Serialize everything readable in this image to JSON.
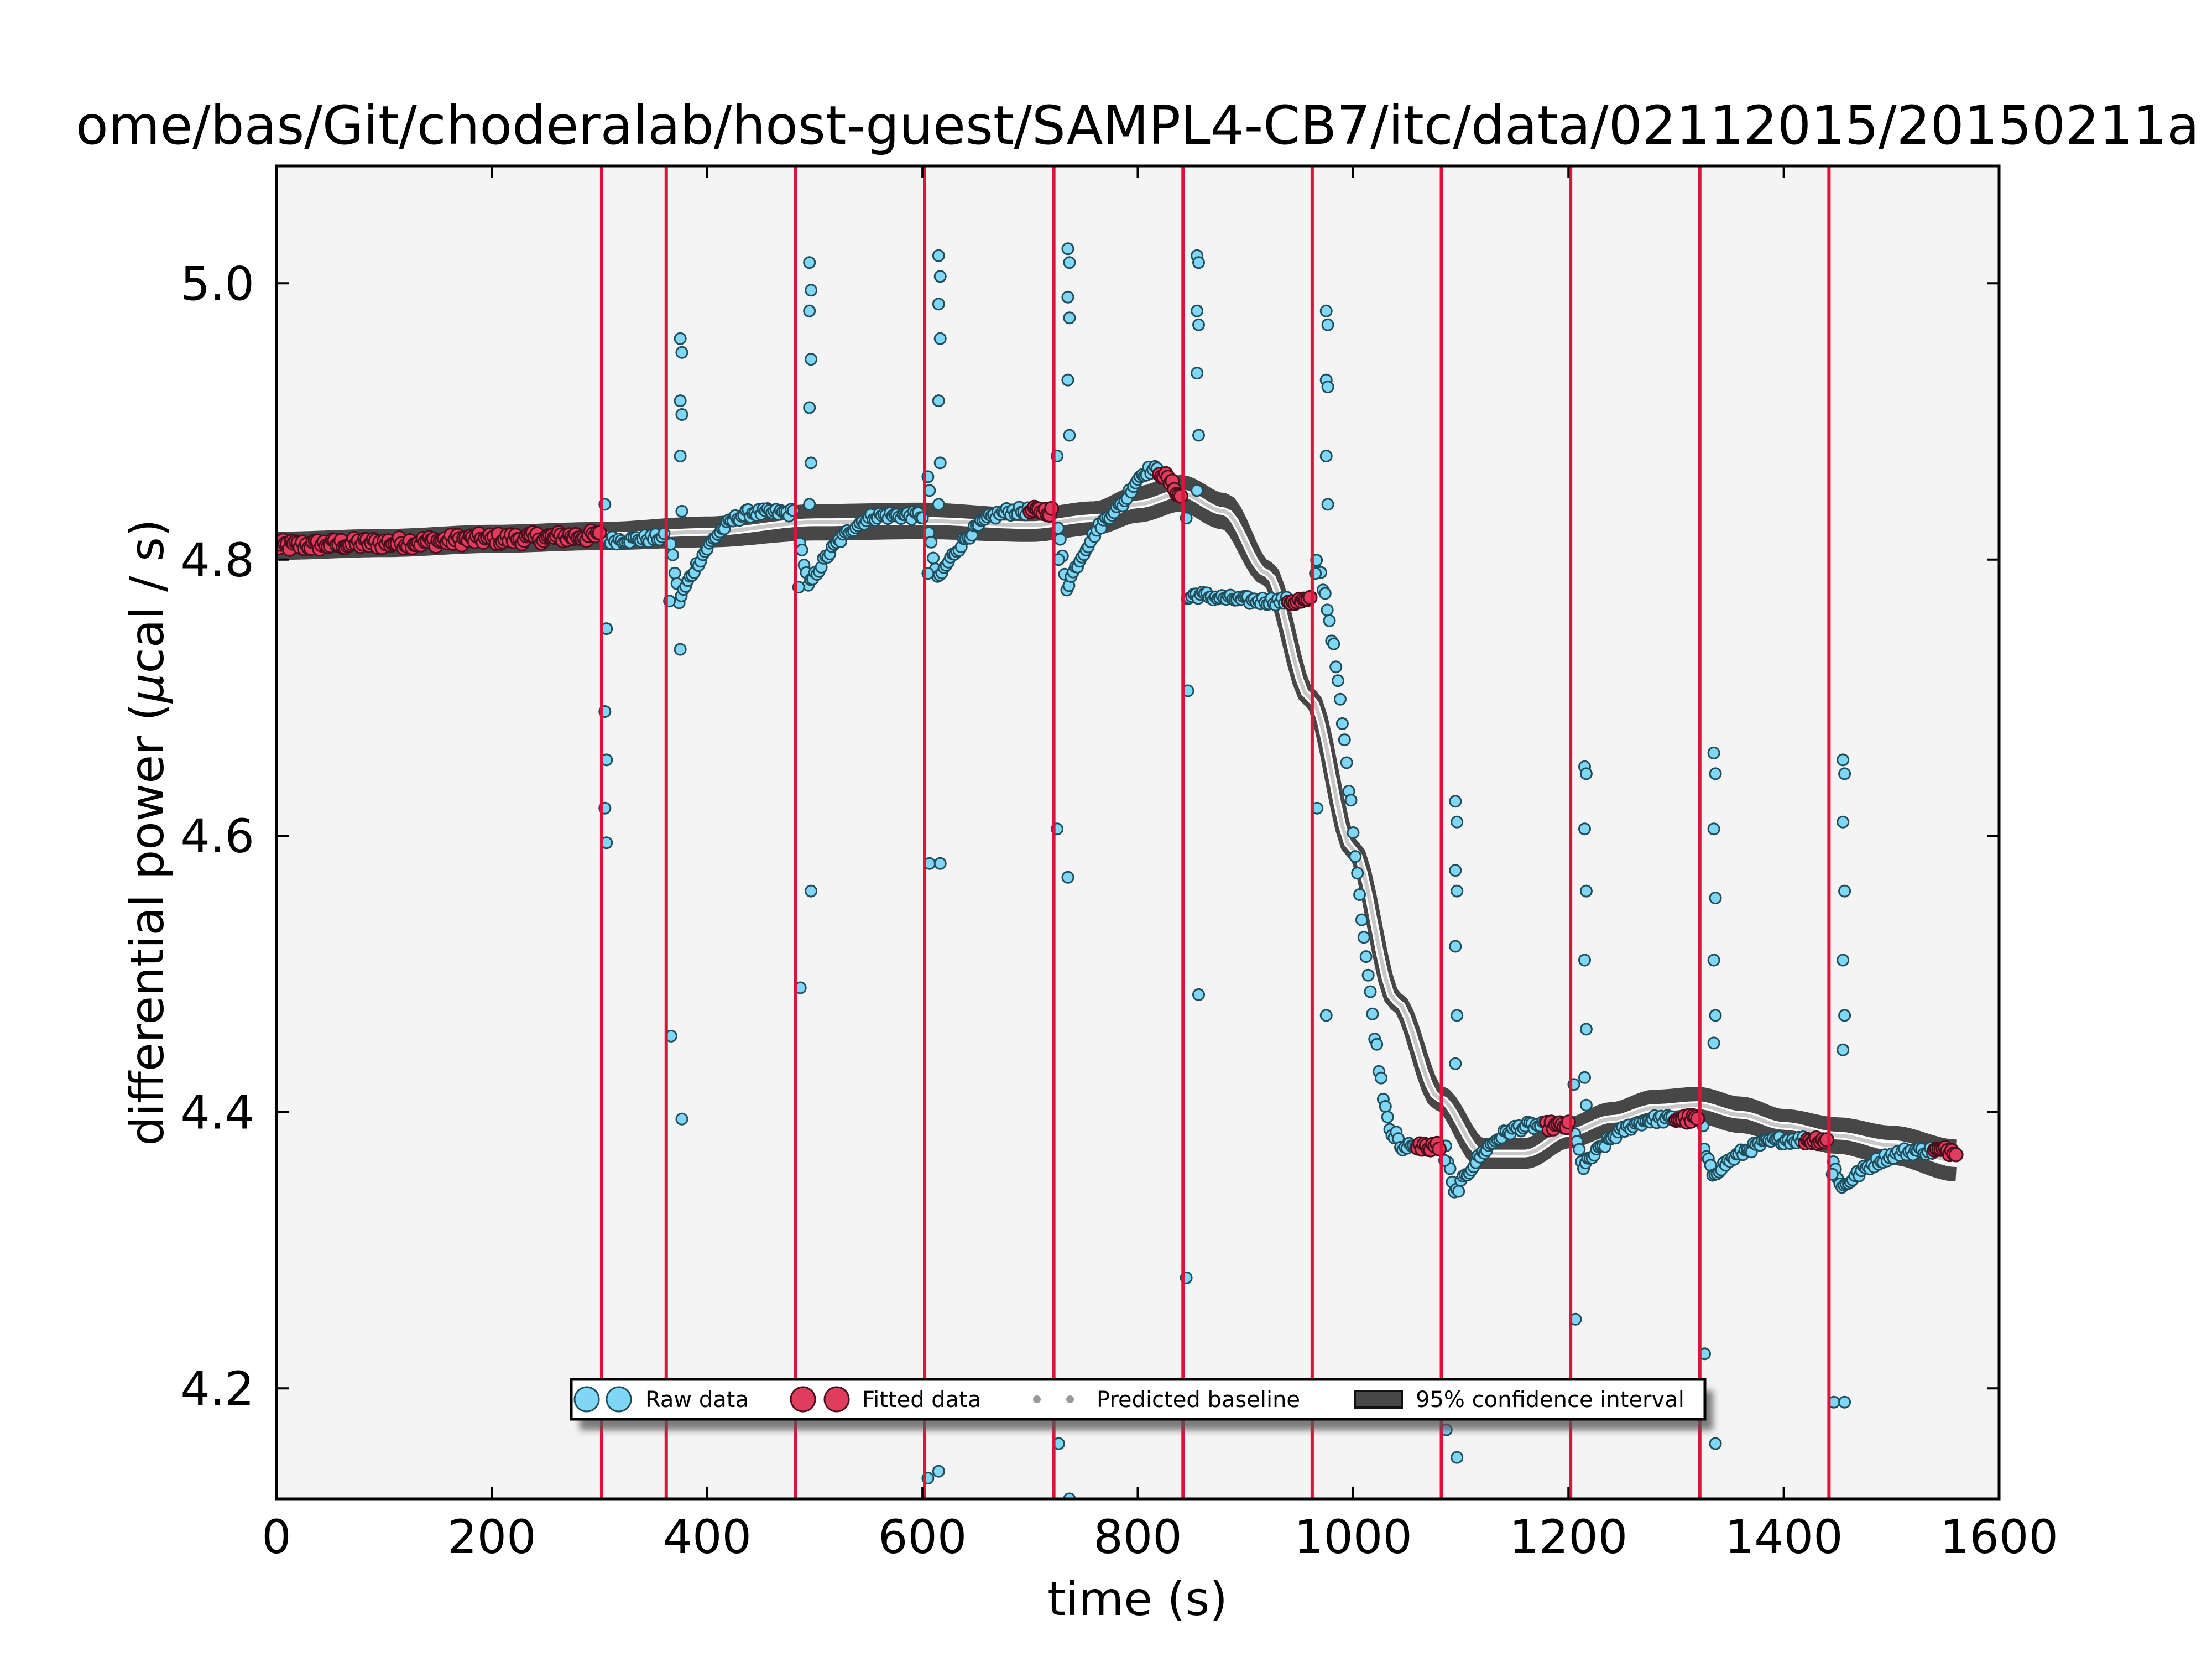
{
  "chart_data": {
    "type": "scatter",
    "title": "ome/bas/Git/choderalab/host-guest/SAMPL4-CB7/itc/data/02112015/20150211a",
    "xlabel": "time (s)",
    "ylabel_prefix": "differential power (",
    "ylabel_mu": "μ",
    "ylabel_suffix": "cal / s)",
    "xlim": [
      0,
      1600
    ],
    "ylim": [
      4.12,
      5.085
    ],
    "x_ticks": [
      0,
      200,
      400,
      600,
      800,
      1000,
      1200,
      1400,
      1600
    ],
    "x_tick_labels": [
      "0",
      "200",
      "400",
      "600",
      "800",
      "1000",
      "1200",
      "1400",
      "1600"
    ],
    "y_ticks": [
      4.2,
      4.4,
      4.6,
      4.8,
      5.0
    ],
    "y_tick_labels": [
      "4.2",
      "4.4",
      "4.6",
      "4.8",
      "5.0"
    ],
    "grid": false,
    "legend_position": "bottom-center",
    "colors": {
      "plot_background": "#f4f4f4",
      "raw_fill": "#7fd6f5",
      "fitted_fill": "#e03c5e",
      "injection_line": "#dc143c",
      "baseline": "#c8c8c8",
      "confidence_band": "#474747"
    },
    "legend": [
      {
        "label": "Raw data",
        "marker": "raw"
      },
      {
        "label": "Fitted data",
        "marker": "fitted"
      },
      {
        "label": "Predicted baseline",
        "marker": "baseline"
      },
      {
        "label": "95% confidence interval",
        "marker": "band"
      }
    ],
    "injection_times": [
      302,
      362,
      482,
      602,
      722,
      842,
      962,
      1082,
      1202,
      1322,
      1442
    ],
    "baseline": {
      "x": [
        0,
        100,
        200,
        300,
        400,
        500,
        600,
        700,
        760,
        800,
        840,
        880,
        920,
        960,
        1000,
        1040,
        1080,
        1120,
        1160,
        1200,
        1240,
        1280,
        1320,
        1360,
        1400,
        1450,
        1500,
        1560
      ],
      "y": [
        4.81,
        4.812,
        4.815,
        4.817,
        4.82,
        4.827,
        4.828,
        4.825,
        4.83,
        4.84,
        4.848,
        4.835,
        4.79,
        4.7,
        4.59,
        4.48,
        4.41,
        4.37,
        4.37,
        4.385,
        4.395,
        4.403,
        4.405,
        4.398,
        4.39,
        4.383,
        4.376,
        4.365
      ],
      "band_halfwidth": [
        0.005,
        0.005,
        0.005,
        0.005,
        0.006,
        0.008,
        0.008,
        0.007,
        0.007,
        0.008,
        0.008,
        0.008,
        0.004,
        0.002,
        0.002,
        0.002,
        0.004,
        0.006,
        0.006,
        0.006,
        0.007,
        0.008,
        0.008,
        0.008,
        0.007,
        0.008,
        0.009,
        0.01
      ]
    },
    "raw_series": [
      {
        "name": "Raw data",
        "x_range": [
          0,
          302
        ],
        "trend": "baseline",
        "noise": 0.004
      },
      {
        "name": "Raw data",
        "x_range": [
          306,
          360
        ],
        "trend": "peak",
        "t0": 302
      },
      {
        "name": "Raw data",
        "x_range": [
          366,
          480
        ],
        "trend": "dip_recover",
        "t0": 362,
        "dip": 4.77,
        "recover": 4.834
      },
      {
        "name": "Raw data",
        "x_range": [
          486,
          600
        ],
        "trend": "dip_recover",
        "t0": 482,
        "dip": 4.78,
        "recover": 4.832
      },
      {
        "name": "Raw data",
        "x_range": [
          606,
          720
        ],
        "trend": "dip_recover",
        "t0": 602,
        "dip": 4.785,
        "recover": 4.835
      },
      {
        "name": "Raw data",
        "x_range": [
          726,
          840
        ],
        "trend": "dip_recover_rise",
        "t0": 722,
        "dip": 4.78,
        "recover": 4.845
      },
      {
        "name": "Raw data",
        "x_range": [
          846,
          960
        ],
        "trend": "dip_recover",
        "t0": 842,
        "dip": 4.775,
        "recover": 4.77
      },
      {
        "name": "Raw data",
        "x_range": [
          966,
          1080
        ],
        "trend": "fall",
        "t0": 962,
        "dip": 4.38,
        "recover": 4.375
      },
      {
        "name": "Raw data",
        "x_range": [
          1086,
          1200
        ],
        "trend": "dip_recover",
        "t0": 1082,
        "dip": 4.34,
        "recover": 4.39
      },
      {
        "name": "Raw data",
        "x_range": [
          1206,
          1320
        ],
        "trend": "dip_recover",
        "t0": 1202,
        "dip": 4.36,
        "recover": 4.395
      },
      {
        "name": "Raw data",
        "x_range": [
          1326,
          1440
        ],
        "trend": "dip_recover",
        "t0": 1322,
        "dip": 4.355,
        "recover": 4.38
      },
      {
        "name": "Raw data",
        "x_range": [
          1446,
          1560
        ],
        "trend": "dip_recover",
        "t0": 1442,
        "dip": 4.345,
        "recover": 4.372
      }
    ],
    "spikes": [
      {
        "x": 305,
        "y": [
          4.84,
          4.75,
          4.69,
          4.655,
          4.62,
          4.595
        ]
      },
      {
        "x": 365,
        "y": [
          4.77,
          4.455
        ]
      },
      {
        "x": 375,
        "y": [
          4.96,
          4.95,
          4.915,
          4.905,
          4.875,
          4.835,
          4.735,
          4.395
        ]
      },
      {
        "x": 485,
        "y": [
          4.78,
          4.49
        ]
      },
      {
        "x": 495,
        "y": [
          5.015,
          4.995,
          4.98,
          4.945,
          4.91,
          4.87,
          4.84,
          4.56
        ]
      },
      {
        "x": 605,
        "y": [
          4.86,
          4.85,
          4.79,
          4.58,
          4.135
        ]
      },
      {
        "x": 615,
        "y": [
          5.02,
          5.005,
          4.985,
          4.96,
          4.915,
          4.87,
          4.84,
          4.58,
          4.14
        ]
      },
      {
        "x": 725,
        "y": [
          4.875,
          4.8,
          4.605,
          4.16
        ]
      },
      {
        "x": 735,
        "y": [
          5.025,
          5.015,
          4.99,
          4.975,
          4.93,
          4.89,
          4.57,
          4.12
        ]
      },
      {
        "x": 845,
        "y": [
          4.83,
          4.705,
          4.28
        ]
      },
      {
        "x": 855,
        "y": [
          5.02,
          5.015,
          4.98,
          4.97,
          4.935,
          4.89,
          4.85,
          4.485
        ]
      },
      {
        "x": 965,
        "y": [
          4.79,
          4.62
        ]
      },
      {
        "x": 975,
        "y": [
          4.98,
          4.97,
          4.93,
          4.925,
          4.875,
          4.84,
          4.47
        ]
      },
      {
        "x": 1085,
        "y": [
          4.365,
          4.17
        ]
      },
      {
        "x": 1095,
        "y": [
          4.625,
          4.61,
          4.575,
          4.56,
          4.52,
          4.47,
          4.435,
          4.15
        ]
      },
      {
        "x": 1205,
        "y": [
          4.42,
          4.25
        ]
      },
      {
        "x": 1215,
        "y": [
          4.65,
          4.645,
          4.605,
          4.56,
          4.51,
          4.46,
          4.425,
          4.405
        ]
      },
      {
        "x": 1325,
        "y": [
          4.39,
          4.225
        ]
      },
      {
        "x": 1335,
        "y": [
          4.66,
          4.645,
          4.605,
          4.555,
          4.51,
          4.47,
          4.45,
          4.16
        ]
      },
      {
        "x": 1445,
        "y": [
          4.355,
          4.19
        ]
      },
      {
        "x": 1455,
        "y": [
          4.655,
          4.645,
          4.61,
          4.56,
          4.51,
          4.47,
          4.445,
          4.19
        ]
      }
    ],
    "fitted_ranges": [
      [
        0,
        300
      ],
      [
        700,
        722
      ],
      [
        820,
        842
      ],
      [
        940,
        962
      ],
      [
        1060,
        1082
      ],
      [
        1180,
        1202
      ],
      [
        1300,
        1322
      ],
      [
        1420,
        1442
      ],
      [
        1540,
        1560
      ]
    ]
  }
}
